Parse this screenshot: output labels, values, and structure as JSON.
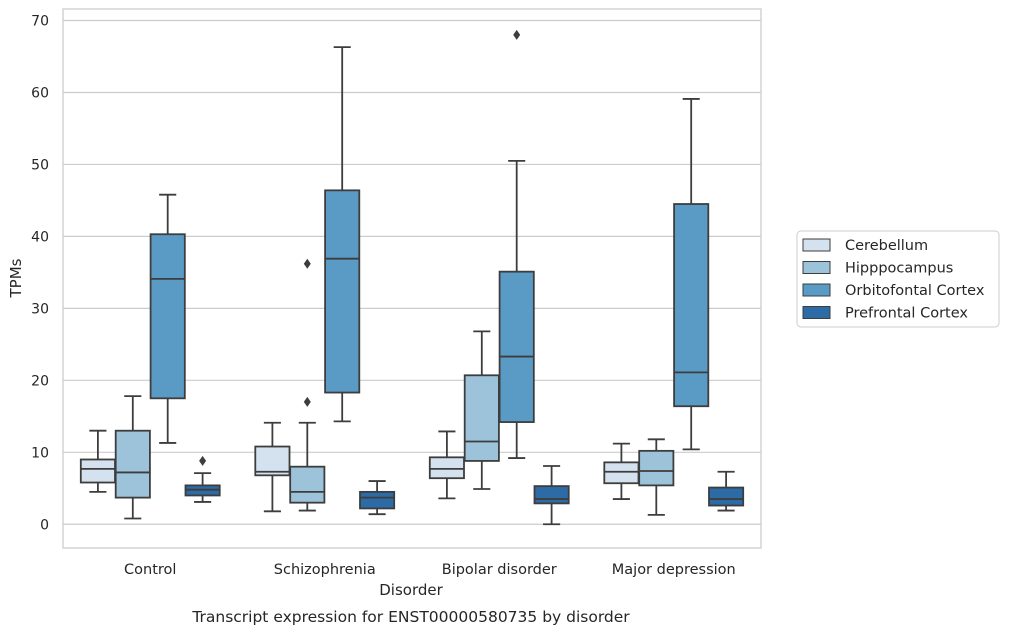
{
  "chart_data": {
    "type": "box",
    "title": "",
    "caption": "Transcript expression for ENST00000580735 by disorder",
    "xlabel": "Disorder",
    "ylabel": "TPMs",
    "ylim": [
      -3.3,
      71.6
    ],
    "yticks": [
      0,
      10,
      20,
      30,
      40,
      50,
      60,
      70
    ],
    "grid": "horizontal",
    "legend_position": "right",
    "categories": [
      "Control",
      "Schizophrenia",
      "Bipolar disorder",
      "Major depression"
    ],
    "series": [
      {
        "name": "Cerebellum",
        "color": "#d4e2ef",
        "boxes": [
          {
            "whislo": 4.5,
            "q1": 5.8,
            "med": 7.7,
            "q3": 9.0,
            "whishi": 13.0,
            "fliers": []
          },
          {
            "whislo": 1.8,
            "q1": 6.8,
            "med": 7.3,
            "q3": 10.8,
            "whishi": 14.1,
            "fliers": []
          },
          {
            "whislo": 3.6,
            "q1": 6.4,
            "med": 7.7,
            "q3": 9.3,
            "whishi": 12.9,
            "fliers": []
          },
          {
            "whislo": 3.5,
            "q1": 5.7,
            "med": 7.3,
            "q3": 8.6,
            "whishi": 11.2,
            "fliers": []
          }
        ]
      },
      {
        "name": "Hipppocampus",
        "color": "#9cc3da",
        "boxes": [
          {
            "whislo": 0.8,
            "q1": 3.7,
            "med": 7.2,
            "q3": 13.0,
            "whishi": 17.8,
            "fliers": []
          },
          {
            "whislo": 1.9,
            "q1": 3.0,
            "med": 4.5,
            "q3": 8.0,
            "whishi": 14.1,
            "fliers": [
              36.2,
              17.0
            ]
          },
          {
            "whislo": 4.9,
            "q1": 8.8,
            "med": 11.5,
            "q3": 20.7,
            "whishi": 26.8,
            "fliers": []
          },
          {
            "whislo": 1.3,
            "q1": 5.4,
            "med": 7.4,
            "q3": 10.2,
            "whishi": 11.8,
            "fliers": []
          }
        ]
      },
      {
        "name": "Orbitofontal Cortex",
        "color": "#5a9bc6",
        "boxes": [
          {
            "whislo": 11.3,
            "q1": 17.5,
            "med": 34.1,
            "q3": 40.3,
            "whishi": 45.8,
            "fliers": []
          },
          {
            "whislo": 14.3,
            "q1": 18.3,
            "med": 36.9,
            "q3": 46.4,
            "whishi": 66.3,
            "fliers": []
          },
          {
            "whislo": 9.2,
            "q1": 14.2,
            "med": 23.3,
            "q3": 35.1,
            "whishi": 50.5,
            "fliers": [
              68.0
            ]
          },
          {
            "whislo": 10.4,
            "q1": 16.4,
            "med": 21.1,
            "q3": 44.5,
            "whishi": 59.1,
            "fliers": []
          }
        ]
      },
      {
        "name": "Prefrontal Cortex",
        "color": "#2d6ba7",
        "boxes": [
          {
            "whislo": 3.1,
            "q1": 4.0,
            "med": 4.8,
            "q3": 5.4,
            "whishi": 7.1,
            "fliers": [
              8.8
            ]
          },
          {
            "whislo": 1.4,
            "q1": 2.2,
            "med": 3.7,
            "q3": 4.5,
            "whishi": 6.0,
            "fliers": []
          },
          {
            "whislo": 0.0,
            "q1": 2.9,
            "med": 3.5,
            "q3": 5.3,
            "whishi": 8.1,
            "fliers": []
          },
          {
            "whislo": 1.9,
            "q1": 2.6,
            "med": 3.5,
            "q3": 5.1,
            "whishi": 7.3,
            "fliers": []
          }
        ]
      }
    ]
  }
}
